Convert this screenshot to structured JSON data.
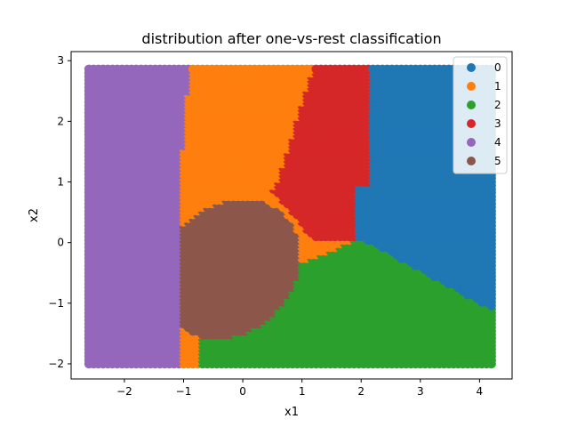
{
  "chart_data": {
    "type": "scatter",
    "title": "distribution after one-vs-rest classification",
    "xlabel": "x1",
    "ylabel": "x2",
    "xlim": [
      -2.9,
      4.55
    ],
    "ylim": [
      -2.25,
      3.15
    ],
    "xticks": [
      -2,
      -1,
      0,
      1,
      2,
      3,
      4
    ],
    "yticks": [
      -2,
      -1,
      0,
      1,
      2,
      3
    ],
    "grid": false,
    "legend": {
      "position": "top-right"
    },
    "colors": {
      "0": "#1f77b4",
      "1": "#ff7f0e",
      "2": "#2ca02c",
      "3": "#d62728",
      "4": "#9467bd",
      "5": "#8c564b"
    },
    "grid_sampling": {
      "x_start": -2.6,
      "x_end": 4.24,
      "x_step": 0.08,
      "y_start": -2.0,
      "y_end": 2.9,
      "y_step": 0.06
    },
    "classes": [
      {
        "label": "0",
        "region": "right side, x1 above ~2.0 to 2.2, bounded below by a line falling from (2, 0.1) to (4.24, -1.1)"
      },
      {
        "label": "1",
        "region": "upper middle, between the purple band and the red wedge, above the brown blob"
      },
      {
        "label": "2",
        "region": "bottom middle/right, below a line rising from (0.3, -0.6) to (2, 0.1) then falling to (4.24, -1.1)"
      },
      {
        "label": "3",
        "region": "wedge from (1.1, 0.9) widening upward to x1 in [1.15, 2.2] at top"
      },
      {
        "label": "4",
        "region": "left band, x1 from -2.6 to about -1.0"
      },
      {
        "label": "5",
        "region": "blob centred near (-0.2, -0.35), spanning x1 -1.45 to 1.1, x2 -1.75 to 0.95"
      }
    ],
    "legend_entries": [
      "0",
      "1",
      "2",
      "3",
      "4",
      "5"
    ]
  }
}
